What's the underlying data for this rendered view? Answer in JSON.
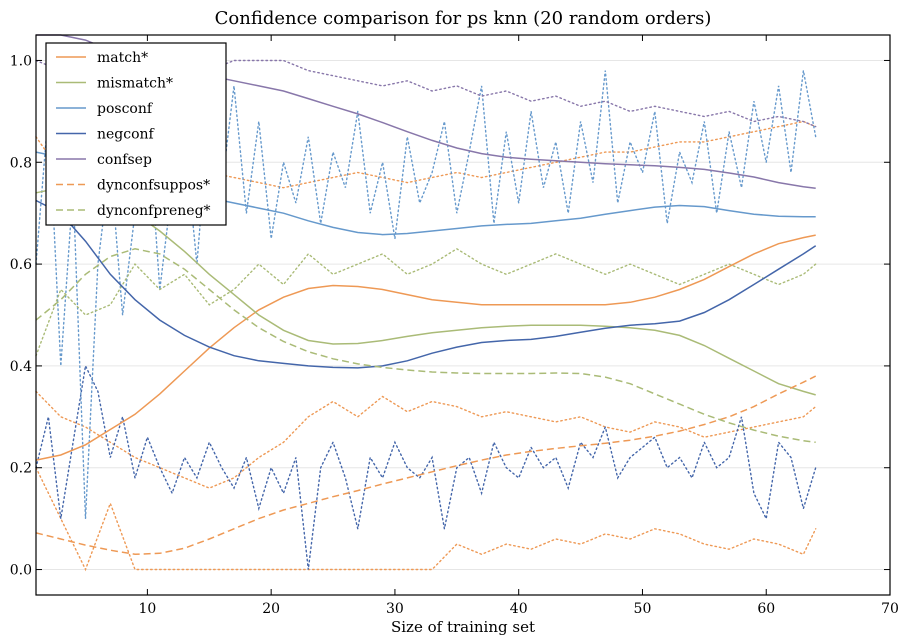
{
  "chart_data": {
    "type": "line",
    "title": "Confidence comparison for ps knn (20 random orders)",
    "xlabel": "Size of training set",
    "ylabel": "",
    "xlim": [
      1,
      70
    ],
    "ylim": [
      -0.05,
      1.05
    ],
    "xticks": [
      10,
      20,
      30,
      40,
      50,
      60,
      70
    ],
    "yticks": [
      0.0,
      0.2,
      0.4,
      0.6,
      0.8,
      1.0
    ],
    "ytick_labels": [
      "0.0",
      "0.2",
      "0.4",
      "0.6",
      "0.8",
      "1.0"
    ],
    "grid": "horizontal",
    "legend_position": "upper-left",
    "colors": {
      "match": "#EE9955",
      "mismatch": "#AABB77",
      "posconf": "#6699CC",
      "negconf": "#4466AA",
      "confsep": "#8877AA",
      "dynconfsuppos": "#EE9955",
      "dynconfpreneg": "#AABB77"
    },
    "series": [
      {
        "name": "match*",
        "style": "solid",
        "color": "#EE9955",
        "x": [
          1,
          3,
          5,
          7,
          9,
          11,
          13,
          15,
          17,
          19,
          21,
          23,
          25,
          27,
          29,
          31,
          33,
          35,
          37,
          39,
          41,
          43,
          45,
          47,
          49,
          51,
          53,
          55,
          57,
          59,
          61,
          63,
          64
        ],
        "y": [
          0.215,
          0.225,
          0.245,
          0.275,
          0.305,
          0.345,
          0.39,
          0.435,
          0.475,
          0.51,
          0.535,
          0.552,
          0.558,
          0.556,
          0.55,
          0.54,
          0.53,
          0.525,
          0.52,
          0.52,
          0.52,
          0.52,
          0.52,
          0.52,
          0.525,
          0.535,
          0.55,
          0.57,
          0.595,
          0.62,
          0.64,
          0.652,
          0.657
        ]
      },
      {
        "name": "mismatch*",
        "style": "solid",
        "color": "#AABB77",
        "x": [
          1,
          3,
          5,
          7,
          9,
          11,
          13,
          15,
          17,
          19,
          21,
          23,
          25,
          27,
          29,
          31,
          33,
          35,
          37,
          39,
          41,
          43,
          45,
          47,
          49,
          51,
          53,
          55,
          57,
          59,
          61,
          63,
          64
        ],
        "y": [
          0.74,
          0.75,
          0.745,
          0.73,
          0.7,
          0.665,
          0.625,
          0.58,
          0.54,
          0.5,
          0.47,
          0.45,
          0.443,
          0.444,
          0.45,
          0.458,
          0.465,
          0.47,
          0.475,
          0.478,
          0.48,
          0.48,
          0.48,
          0.478,
          0.475,
          0.47,
          0.46,
          0.44,
          0.415,
          0.39,
          0.365,
          0.35,
          0.343
        ]
      },
      {
        "name": "posconf",
        "style": "solid",
        "color": "#6699CC",
        "x": [
          1,
          3,
          5,
          7,
          9,
          11,
          13,
          15,
          17,
          19,
          21,
          23,
          25,
          27,
          29,
          31,
          33,
          35,
          37,
          39,
          41,
          43,
          45,
          47,
          49,
          51,
          53,
          55,
          57,
          59,
          61,
          63,
          64
        ],
        "y": [
          0.82,
          0.81,
          0.8,
          0.785,
          0.77,
          0.755,
          0.74,
          0.73,
          0.72,
          0.71,
          0.7,
          0.685,
          0.672,
          0.662,
          0.658,
          0.66,
          0.665,
          0.67,
          0.675,
          0.678,
          0.68,
          0.685,
          0.69,
          0.698,
          0.705,
          0.712,
          0.715,
          0.713,
          0.705,
          0.698,
          0.694,
          0.693,
          0.693
        ]
      },
      {
        "name": "negconf",
        "style": "solid",
        "color": "#4466AA",
        "x": [
          1,
          3,
          5,
          7,
          9,
          11,
          13,
          15,
          17,
          19,
          21,
          23,
          25,
          27,
          29,
          31,
          33,
          35,
          37,
          39,
          41,
          43,
          45,
          47,
          49,
          51,
          53,
          55,
          57,
          59,
          61,
          63,
          64
        ],
        "y": [
          0.725,
          0.7,
          0.645,
          0.58,
          0.53,
          0.49,
          0.46,
          0.437,
          0.42,
          0.41,
          0.405,
          0.4,
          0.397,
          0.396,
          0.4,
          0.41,
          0.425,
          0.437,
          0.446,
          0.45,
          0.452,
          0.458,
          0.466,
          0.474,
          0.48,
          0.483,
          0.488,
          0.505,
          0.53,
          0.56,
          0.59,
          0.62,
          0.636
        ]
      },
      {
        "name": "confsep",
        "style": "solid",
        "color": "#8877AA",
        "x": [
          1,
          3,
          5,
          7,
          9,
          11,
          13,
          15,
          17,
          19,
          21,
          23,
          25,
          27,
          29,
          31,
          33,
          35,
          37,
          39,
          41,
          43,
          45,
          47,
          49,
          51,
          53,
          55,
          57,
          59,
          61,
          63,
          64
        ],
        "y": [
          1.06,
          1.05,
          1.04,
          1.02,
          1.0,
          0.99,
          0.98,
          0.97,
          0.96,
          0.95,
          0.94,
          0.925,
          0.91,
          0.895,
          0.878,
          0.86,
          0.843,
          0.828,
          0.817,
          0.81,
          0.806,
          0.803,
          0.8,
          0.797,
          0.795,
          0.793,
          0.79,
          0.786,
          0.779,
          0.771,
          0.76,
          0.752,
          0.749
        ]
      },
      {
        "name": "dynconfsuppos*",
        "style": "dashed",
        "color": "#EE9955",
        "x": [
          1,
          3,
          5,
          7,
          9,
          11,
          13,
          15,
          17,
          19,
          21,
          23,
          25,
          27,
          29,
          31,
          33,
          35,
          37,
          39,
          41,
          43,
          45,
          47,
          49,
          51,
          53,
          55,
          57,
          59,
          61,
          63,
          64
        ],
        "y": [
          0.072,
          0.06,
          0.048,
          0.038,
          0.03,
          0.032,
          0.042,
          0.06,
          0.08,
          0.1,
          0.117,
          0.13,
          0.143,
          0.155,
          0.168,
          0.18,
          0.192,
          0.204,
          0.215,
          0.225,
          0.232,
          0.238,
          0.243,
          0.248,
          0.254,
          0.262,
          0.272,
          0.285,
          0.3,
          0.32,
          0.345,
          0.368,
          0.38
        ]
      },
      {
        "name": "dynconfpreneg*",
        "style": "dashed",
        "color": "#AABB77",
        "x": [
          1,
          3,
          5,
          7,
          9,
          11,
          13,
          15,
          17,
          19,
          21,
          23,
          25,
          27,
          29,
          31,
          33,
          35,
          37,
          39,
          41,
          43,
          45,
          47,
          49,
          51,
          53,
          55,
          57,
          59,
          61,
          63,
          64
        ],
        "y": [
          0.49,
          0.53,
          0.58,
          0.615,
          0.63,
          0.62,
          0.59,
          0.55,
          0.51,
          0.475,
          0.448,
          0.428,
          0.414,
          0.404,
          0.397,
          0.392,
          0.388,
          0.386,
          0.385,
          0.385,
          0.385,
          0.386,
          0.385,
          0.378,
          0.365,
          0.345,
          0.325,
          0.305,
          0.288,
          0.274,
          0.262,
          0.253,
          0.25
        ]
      }
    ],
    "background_series": [
      {
        "style": "dotted",
        "color": "#EE9955",
        "x": [
          1,
          3,
          5,
          7,
          9,
          11,
          13,
          15,
          17,
          19,
          21,
          23,
          25,
          27,
          29,
          31,
          33,
          35,
          37,
          39,
          41,
          43,
          45,
          47,
          49,
          51,
          53,
          55,
          57,
          59,
          61,
          63,
          64
        ],
        "y": [
          0.2,
          0.1,
          0.0,
          0.13,
          0.0,
          0.0,
          0.0,
          0.0,
          0.0,
          0.0,
          0.0,
          0.0,
          0.0,
          0.0,
          0.0,
          0.0,
          0.0,
          0.05,
          0.03,
          0.05,
          0.04,
          0.06,
          0.05,
          0.07,
          0.06,
          0.08,
          0.07,
          0.05,
          0.04,
          0.06,
          0.05,
          0.03,
          0.08
        ]
      },
      {
        "style": "dotted",
        "color": "#EE9955",
        "x": [
          1,
          3,
          5,
          7,
          9,
          11,
          13,
          15,
          17,
          19,
          21,
          23,
          25,
          27,
          29,
          31,
          33,
          35,
          37,
          39,
          41,
          43,
          45,
          47,
          49,
          51,
          53,
          55,
          57,
          59,
          61,
          63,
          64
        ],
        "y": [
          0.35,
          0.3,
          0.28,
          0.25,
          0.22,
          0.2,
          0.18,
          0.16,
          0.18,
          0.22,
          0.25,
          0.3,
          0.33,
          0.3,
          0.34,
          0.31,
          0.33,
          0.32,
          0.3,
          0.31,
          0.3,
          0.29,
          0.3,
          0.28,
          0.27,
          0.29,
          0.28,
          0.26,
          0.27,
          0.28,
          0.29,
          0.3,
          0.32
        ]
      },
      {
        "style": "dotted",
        "color": "#EE9955",
        "x": [
          1,
          3,
          5,
          7,
          9,
          11,
          13,
          15,
          17,
          19,
          21,
          23,
          25,
          27,
          29,
          31,
          33,
          35,
          37,
          39,
          41,
          43,
          45,
          47,
          49,
          51,
          53,
          55,
          57,
          59,
          61,
          63,
          64
        ],
        "y": [
          0.85,
          0.78,
          0.75,
          0.78,
          0.8,
          0.82,
          0.8,
          0.78,
          0.77,
          0.76,
          0.75,
          0.76,
          0.77,
          0.78,
          0.77,
          0.76,
          0.77,
          0.78,
          0.77,
          0.78,
          0.79,
          0.8,
          0.81,
          0.82,
          0.82,
          0.83,
          0.84,
          0.84,
          0.85,
          0.86,
          0.87,
          0.88,
          0.87
        ]
      },
      {
        "style": "dotted",
        "color": "#4466AA",
        "x": [
          1,
          2,
          3,
          4,
          5,
          6,
          7,
          8,
          9,
          10,
          11,
          12,
          13,
          14,
          15,
          16,
          17,
          18,
          19,
          20,
          21,
          22,
          23,
          24,
          25,
          26,
          27,
          28,
          29,
          30,
          31,
          32,
          33,
          34,
          35,
          36,
          37,
          38,
          39,
          40,
          41,
          42,
          43,
          44,
          45,
          46,
          47,
          48,
          49,
          50,
          51,
          52,
          53,
          54,
          55,
          56,
          57,
          58,
          59,
          60,
          61,
          62,
          63,
          64
        ],
        "y": [
          0.2,
          0.3,
          0.1,
          0.25,
          0.4,
          0.35,
          0.22,
          0.3,
          0.18,
          0.26,
          0.2,
          0.15,
          0.22,
          0.18,
          0.25,
          0.2,
          0.16,
          0.22,
          0.12,
          0.2,
          0.15,
          0.22,
          0.0,
          0.2,
          0.25,
          0.18,
          0.08,
          0.22,
          0.18,
          0.25,
          0.2,
          0.18,
          0.22,
          0.08,
          0.2,
          0.22,
          0.15,
          0.25,
          0.2,
          0.18,
          0.24,
          0.2,
          0.22,
          0.16,
          0.25,
          0.22,
          0.28,
          0.18,
          0.22,
          0.24,
          0.26,
          0.2,
          0.22,
          0.18,
          0.25,
          0.2,
          0.22,
          0.3,
          0.15,
          0.1,
          0.25,
          0.22,
          0.12,
          0.2
        ]
      },
      {
        "style": "dotted",
        "color": "#6699CC",
        "x": [
          1,
          2,
          3,
          4,
          5,
          6,
          7,
          8,
          9,
          10,
          11,
          12,
          13,
          14,
          15,
          16,
          17,
          18,
          19,
          20,
          21,
          22,
          23,
          24,
          25,
          26,
          27,
          28,
          29,
          30,
          31,
          32,
          33,
          34,
          35,
          36,
          37,
          38,
          39,
          40,
          41,
          42,
          43,
          44,
          45,
          46,
          47,
          48,
          49,
          50,
          51,
          52,
          53,
          54,
          55,
          56,
          57,
          58,
          59,
          60,
          61,
          62,
          63,
          64
        ],
        "y": [
          0.6,
          0.9,
          0.4,
          0.75,
          0.1,
          0.6,
          0.8,
          0.5,
          0.7,
          0.9,
          0.55,
          0.75,
          0.85,
          0.6,
          0.9,
          0.75,
          0.95,
          0.7,
          0.88,
          0.65,
          0.8,
          0.72,
          0.85,
          0.68,
          0.82,
          0.75,
          0.9,
          0.7,
          0.8,
          0.65,
          0.85,
          0.72,
          0.78,
          0.88,
          0.7,
          0.82,
          0.95,
          0.68,
          0.86,
          0.72,
          0.9,
          0.75,
          0.84,
          0.7,
          0.88,
          0.76,
          0.98,
          0.72,
          0.84,
          0.78,
          0.9,
          0.68,
          0.82,
          0.76,
          0.88,
          0.7,
          0.86,
          0.75,
          0.92,
          0.8,
          0.95,
          0.78,
          0.98,
          0.85
        ]
      },
      {
        "style": "dotted",
        "color": "#8877AA",
        "x": [
          1,
          3,
          5,
          7,
          9,
          11,
          13,
          15,
          17,
          19,
          21,
          23,
          25,
          27,
          29,
          31,
          33,
          35,
          37,
          39,
          41,
          43,
          45,
          47,
          49,
          51,
          53,
          55,
          57,
          59,
          61,
          63,
          64
        ],
        "y": [
          1.0,
          0.98,
          0.96,
          0.98,
          1.0,
          0.99,
          0.97,
          0.98,
          1.0,
          1.0,
          1.0,
          0.98,
          0.97,
          0.96,
          0.95,
          0.96,
          0.94,
          0.95,
          0.93,
          0.94,
          0.92,
          0.93,
          0.91,
          0.92,
          0.9,
          0.91,
          0.9,
          0.89,
          0.9,
          0.88,
          0.89,
          0.88,
          0.87
        ]
      },
      {
        "style": "dotted",
        "color": "#AABB77",
        "x": [
          1,
          3,
          5,
          7,
          9,
          11,
          13,
          15,
          17,
          19,
          21,
          23,
          25,
          27,
          29,
          31,
          33,
          35,
          37,
          39,
          41,
          43,
          45,
          47,
          49,
          51,
          53,
          55,
          57,
          59,
          61,
          63,
          64
        ],
        "y": [
          0.42,
          0.55,
          0.5,
          0.52,
          0.6,
          0.55,
          0.58,
          0.52,
          0.55,
          0.6,
          0.56,
          0.62,
          0.58,
          0.6,
          0.62,
          0.58,
          0.6,
          0.63,
          0.6,
          0.58,
          0.6,
          0.62,
          0.6,
          0.58,
          0.6,
          0.58,
          0.56,
          0.58,
          0.6,
          0.58,
          0.56,
          0.58,
          0.6
        ]
      }
    ]
  }
}
